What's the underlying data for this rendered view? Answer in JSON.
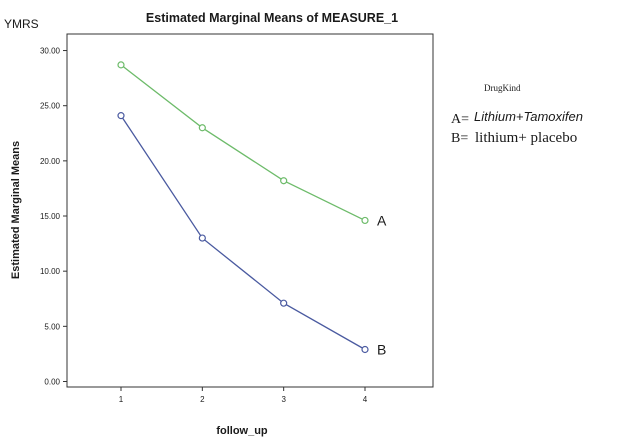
{
  "chart_data": {
    "type": "line",
    "title": "Estimated Marginal Means of MEASURE_1",
    "corner_label": "YMRS",
    "xlabel": "follow_up",
    "ylabel": "Estimated Marginal Means",
    "x": [
      1,
      2,
      3,
      4
    ],
    "x_tick_labels": [
      "1",
      "2",
      "3",
      "4"
    ],
    "ylim": [
      -0.5,
      31.5
    ],
    "y_ticks": [
      0,
      5,
      10,
      15,
      20,
      25,
      30
    ],
    "y_tick_labels": [
      "0.00",
      "5.00",
      "10.00",
      "15.00",
      "20.00",
      "25.00",
      "30.00"
    ],
    "grid": false,
    "series": [
      {
        "name": "A",
        "color": "#6dbb6a",
        "values": [
          28.7,
          23.0,
          18.2,
          14.6
        ]
      },
      {
        "name": "B",
        "color": "#4a5aa0",
        "values": [
          24.1,
          13.0,
          7.1,
          2.9
        ]
      }
    ],
    "legend": {
      "placement": "right",
      "title": "DrugKind",
      "entries": [
        {
          "key": "A=",
          "text": "Lithium+Tamoxifen"
        },
        {
          "key": "B=",
          "text": "lithium+ placebo"
        }
      ]
    }
  }
}
